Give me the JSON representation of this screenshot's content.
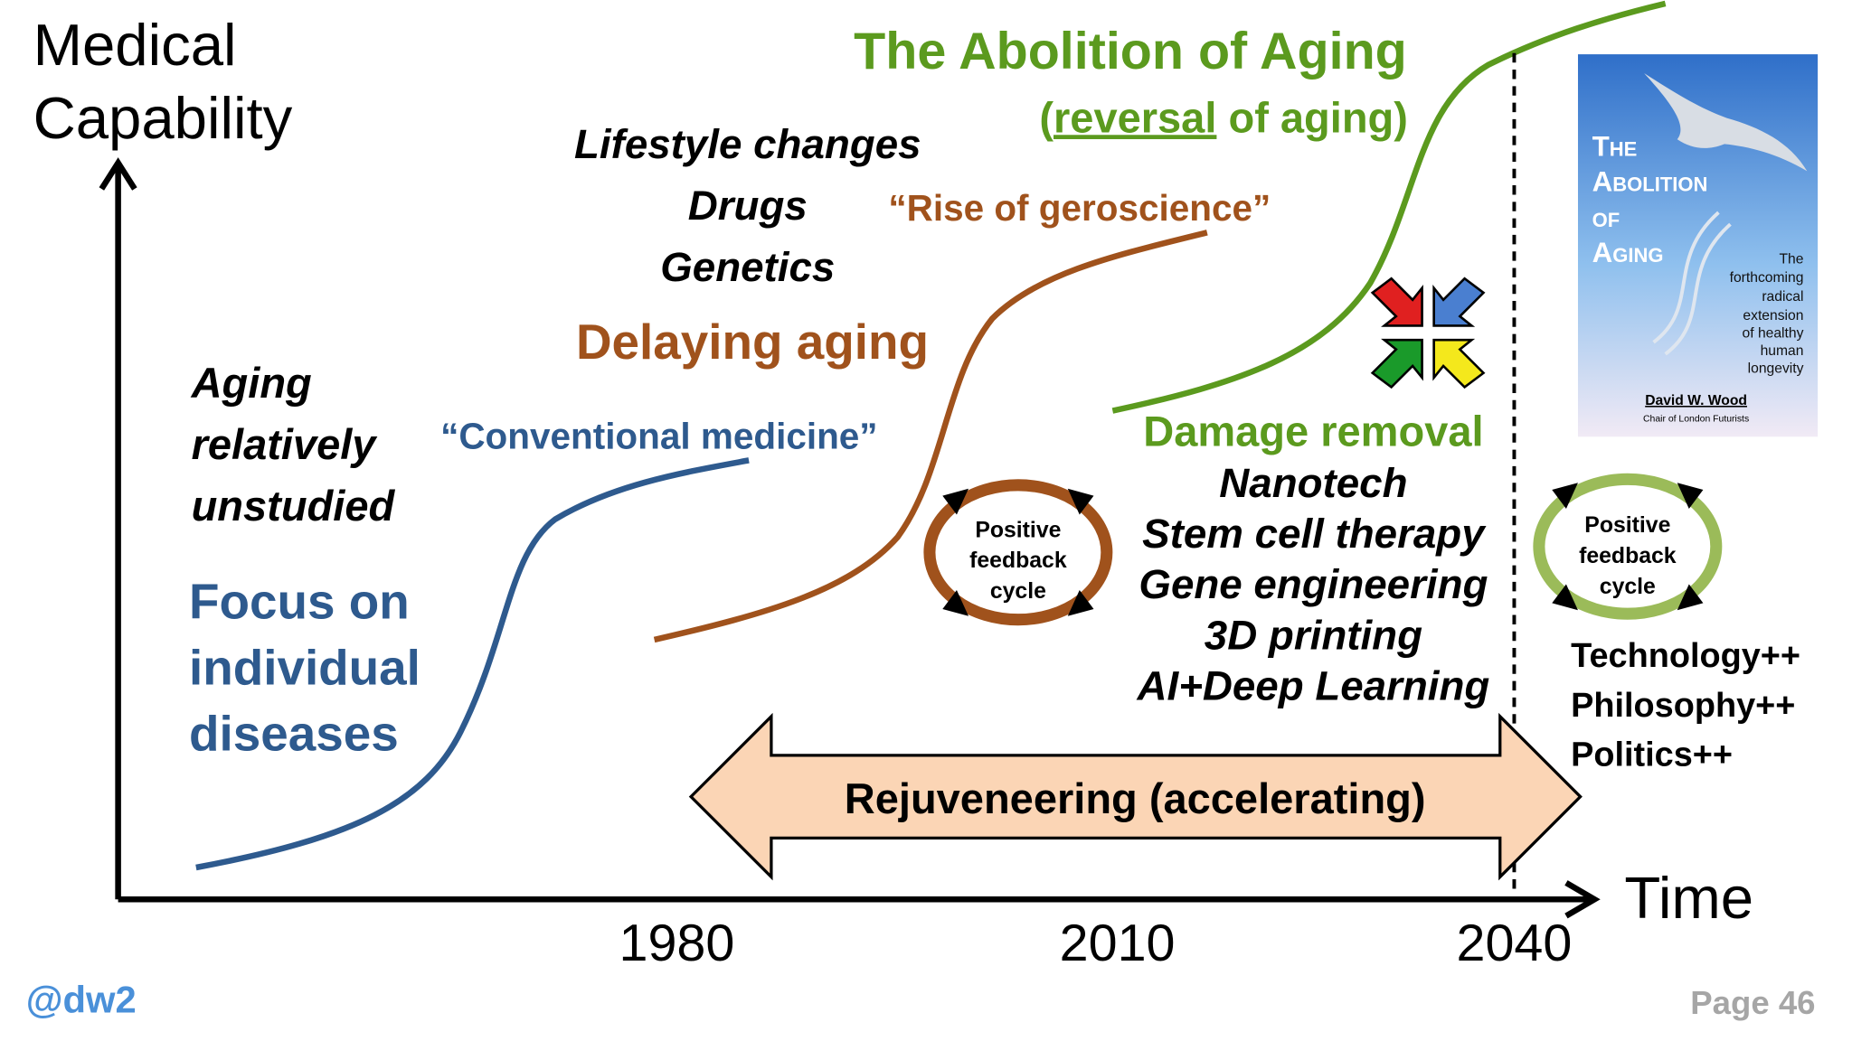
{
  "axes": {
    "y_label": [
      "Medical",
      "Capability"
    ],
    "x_label": "Time",
    "x_ticks": [
      "1980",
      "2010",
      "2040"
    ]
  },
  "phase1": {
    "note": [
      "Aging",
      "relatively",
      "unstudied"
    ],
    "focus": [
      "Focus on",
      "individual",
      "diseases"
    ],
    "curve_label": "“Conventional medicine”"
  },
  "phase2": {
    "items": [
      "Lifestyle changes",
      "Drugs",
      "Genetics"
    ],
    "heading": "Delaying aging",
    "curve_label": "“Rise of geroscience”",
    "cycle": [
      "Positive",
      "feedback",
      "cycle"
    ]
  },
  "phase3": {
    "title": "The Abolition of Aging",
    "subtitle_parts": [
      "(",
      "reversal",
      " of aging)"
    ],
    "heading": "Damage removal",
    "items": [
      "Nanotech",
      "Stem cell therapy",
      "Gene engineering",
      "3D printing",
      "AI+Deep Learning"
    ]
  },
  "future": {
    "cycle": [
      "Positive",
      "feedback",
      "cycle"
    ],
    "items": [
      "Technology++",
      "Philosophy++",
      "Politics++"
    ]
  },
  "arrow_label": "Rejuveneering (accelerating)",
  "book": {
    "title": [
      "The",
      "Abolition",
      "of",
      "Aging"
    ],
    "blurb": [
      "The",
      "forthcoming",
      "radical",
      "extension",
      "of healthy",
      "human",
      "longevity"
    ],
    "author": "David W. Wood",
    "role": "Chair of London Futurists"
  },
  "footer": {
    "handle": "@dw2",
    "page": "Page 46"
  }
}
